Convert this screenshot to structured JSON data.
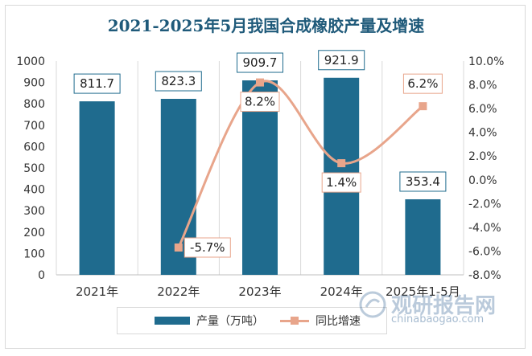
{
  "chart_data": {
    "type": "bar",
    "title": "2021-2025年5月我国合成橡胶产量及增速",
    "categories": [
      "2021年",
      "2022年",
      "2023年",
      "2024年",
      "2025年1-5月"
    ],
    "series": [
      {
        "name": "产量（万吨）",
        "type": "bar",
        "axis": "left",
        "values": [
          811.7,
          823.3,
          909.7,
          921.9,
          353.4
        ],
        "labels": [
          "811.7",
          "823.3",
          "909.7",
          "921.9",
          "353.4"
        ]
      },
      {
        "name": "同比增速",
        "type": "line",
        "axis": "right",
        "values": [
          null,
          -5.7,
          8.2,
          1.4,
          6.2
        ],
        "labels": [
          "",
          "-5.7%",
          "8.2%",
          "1.4%",
          "6.2%"
        ]
      }
    ],
    "y_left": {
      "min": 0,
      "max": 1000,
      "ticks": [
        "0",
        "100",
        "200",
        "300",
        "400",
        "500",
        "600",
        "700",
        "800",
        "900",
        "1000"
      ]
    },
    "y_right": {
      "min": -8,
      "max": 10,
      "ticks": [
        "-8.0%",
        "-6.0%",
        "-4.0%",
        "-2.0%",
        "0.0%",
        "2.0%",
        "4.0%",
        "6.0%",
        "8.0%",
        "10.0%"
      ]
    },
    "grid": "vertical",
    "legend_position": "bottom",
    "colors": {
      "bar": "#1f6b8e",
      "line": "#e8a58b",
      "bar_label_border": "#1f6b8e",
      "line_label_border": "#e8a58b",
      "title": "#1f5a7a"
    }
  },
  "watermark": {
    "text": "观研报告网",
    "url": "chinabaogao.com",
    "logo": "chinabaogao-logo-icon"
  }
}
